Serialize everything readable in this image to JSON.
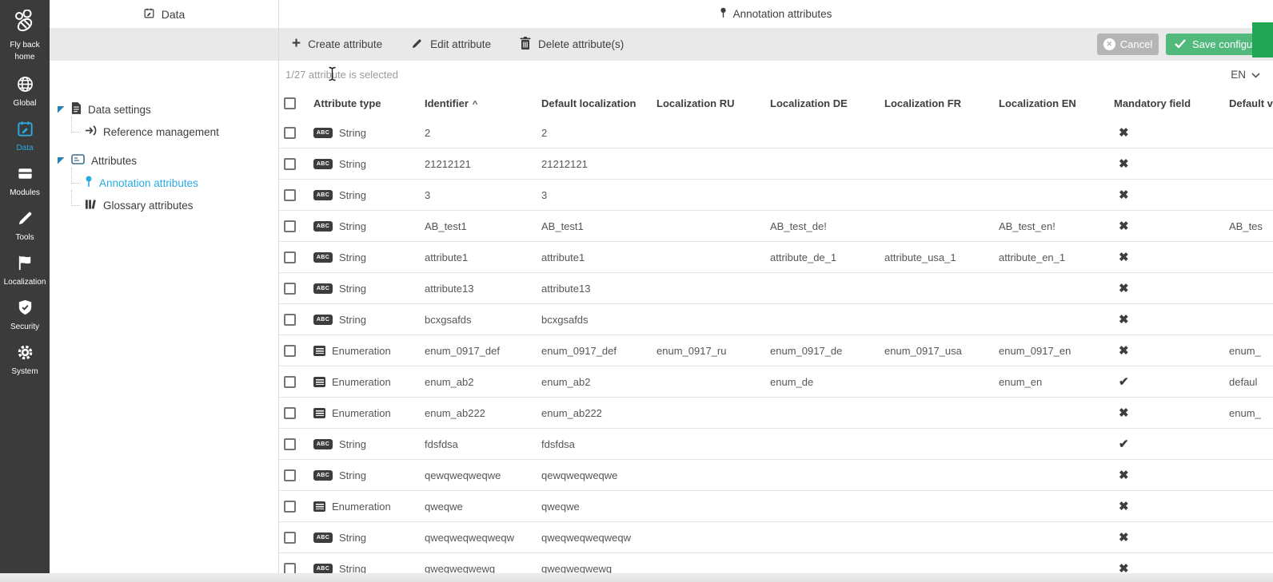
{
  "sidebar": {
    "logo": {
      "label": "Fly back home",
      "icon": "bee-logo"
    },
    "items": [
      {
        "label": "Global",
        "icon": "globe-icon",
        "active": false
      },
      {
        "label": "Data",
        "icon": "data-calendar-icon",
        "active": true
      },
      {
        "label": "Modules",
        "icon": "modules-icon",
        "active": false
      },
      {
        "label": "Tools",
        "icon": "pencil-icon",
        "active": false
      },
      {
        "label": "Localization",
        "icon": "flag-icon",
        "active": false
      },
      {
        "label": "Security",
        "icon": "shield-check-icon",
        "active": false
      },
      {
        "label": "System",
        "icon": "gear-icon",
        "active": false
      }
    ]
  },
  "tree": {
    "tab_label": "Data",
    "items": [
      {
        "label": "Data settings",
        "level": 0,
        "icon": "document-icon",
        "expanded": true,
        "selected": false
      },
      {
        "label": "Reference management",
        "level": 1,
        "icon": "reference-arrow-icon",
        "selected": false
      },
      {
        "label": "Attributes",
        "level": 0,
        "icon": "attributes-card-icon",
        "expanded": true,
        "selected": false
      },
      {
        "label": "Annotation attributes",
        "level": 1,
        "icon": "annotation-pin-icon",
        "selected": true
      },
      {
        "label": "Glossary attributes",
        "level": 1,
        "icon": "glossary-books-icon",
        "selected": false
      }
    ]
  },
  "header": {
    "title": "Annotation attributes"
  },
  "toolbar": {
    "create_label": "Create attribute",
    "edit_label": "Edit attribute",
    "delete_label": "Delete attribute(s)",
    "cancel_label": "Cancel",
    "save_label": "Save configuration"
  },
  "statusbar": {
    "selection_text": "1/27 attribute is selected",
    "language": "EN"
  },
  "table": {
    "columns": [
      "Attribute type",
      "Identifier",
      "Default localization",
      "Localization RU",
      "Localization DE",
      "Localization FR",
      "Localization EN",
      "Mandatory field",
      "Default value"
    ],
    "sort": {
      "column": "Identifier",
      "direction": "asc",
      "indicator": "^"
    },
    "rows": [
      {
        "type": "String",
        "identifier": "2",
        "default_localization": "2",
        "localization_ru": "",
        "localization_de": "",
        "localization_fr": "",
        "localization_en": "",
        "mandatory": false,
        "default_value": ""
      },
      {
        "type": "String",
        "identifier": "21212121",
        "default_localization": "21212121",
        "localization_ru": "",
        "localization_de": "",
        "localization_fr": "",
        "localization_en": "",
        "mandatory": false,
        "default_value": ""
      },
      {
        "type": "String",
        "identifier": "3",
        "default_localization": "3",
        "localization_ru": "",
        "localization_de": "",
        "localization_fr": "",
        "localization_en": "",
        "mandatory": false,
        "default_value": ""
      },
      {
        "type": "String",
        "identifier": "AB_test1",
        "default_localization": "AB_test1",
        "localization_ru": "",
        "localization_de": "AB_test_de!",
        "localization_fr": "",
        "localization_en": "AB_test_en!",
        "mandatory": false,
        "default_value": "AB_tes"
      },
      {
        "type": "String",
        "identifier": "attribute1",
        "default_localization": "attribute1",
        "localization_ru": "",
        "localization_de": "attribute_de_1",
        "localization_fr": "attribute_usa_1",
        "localization_en": "attribute_en_1",
        "mandatory": false,
        "default_value": ""
      },
      {
        "type": "String",
        "identifier": "attribute13",
        "default_localization": "attribute13",
        "localization_ru": "",
        "localization_de": "",
        "localization_fr": "",
        "localization_en": "",
        "mandatory": false,
        "default_value": ""
      },
      {
        "type": "String",
        "identifier": "bcxgsafds",
        "default_localization": "bcxgsafds",
        "localization_ru": "",
        "localization_de": "",
        "localization_fr": "",
        "localization_en": "",
        "mandatory": false,
        "default_value": ""
      },
      {
        "type": "Enumeration",
        "identifier": "enum_0917_def",
        "default_localization": "enum_0917_def",
        "localization_ru": "enum_0917_ru",
        "localization_de": "enum_0917_de",
        "localization_fr": "enum_0917_usa",
        "localization_en": "enum_0917_en",
        "mandatory": false,
        "default_value": "enum_"
      },
      {
        "type": "Enumeration",
        "identifier": "enum_ab2",
        "default_localization": "enum_ab2",
        "localization_ru": "",
        "localization_de": "enum_de",
        "localization_fr": "",
        "localization_en": "enum_en",
        "mandatory": true,
        "default_value": "defaul"
      },
      {
        "type": "Enumeration",
        "identifier": "enum_ab222",
        "default_localization": "enum_ab222",
        "localization_ru": "",
        "localization_de": "",
        "localization_fr": "",
        "localization_en": "",
        "mandatory": false,
        "default_value": "enum_"
      },
      {
        "type": "String",
        "identifier": "fdsfdsa",
        "default_localization": "fdsfdsa",
        "localization_ru": "",
        "localization_de": "",
        "localization_fr": "",
        "localization_en": "",
        "mandatory": true,
        "default_value": ""
      },
      {
        "type": "String",
        "identifier": "qewqweqweqwe",
        "default_localization": "qewqweqweqwe",
        "localization_ru": "",
        "localization_de": "",
        "localization_fr": "",
        "localization_en": "",
        "mandatory": false,
        "default_value": ""
      },
      {
        "type": "Enumeration",
        "identifier": "qweqwe",
        "default_localization": "qweqwe",
        "localization_ru": "",
        "localization_de": "",
        "localization_fr": "",
        "localization_en": "",
        "mandatory": false,
        "default_value": ""
      },
      {
        "type": "String",
        "identifier": "qweqweqweqweqw",
        "default_localization": "qweqweqweqweqw",
        "localization_ru": "",
        "localization_de": "",
        "localization_fr": "",
        "localization_en": "",
        "mandatory": false,
        "default_value": ""
      },
      {
        "type": "String",
        "identifier": "qweqweqwewq",
        "default_localization": "qweqweqwewq",
        "localization_ru": "",
        "localization_de": "",
        "localization_fr": "",
        "localization_en": "",
        "mandatory": false,
        "default_value": ""
      }
    ]
  },
  "icons_text": {
    "string_badge": "ABC",
    "mandatory_yes": "✔",
    "mandatory_no": "✖"
  },
  "colors": {
    "accent_blue": "#29abe2",
    "save_green": "#50b97b",
    "corner_green": "#1fa553",
    "cancel_gray": "#b5b5b5",
    "sidebar_bg": "#3b3b3b",
    "toolbar_gray": "#e9e9e9"
  }
}
